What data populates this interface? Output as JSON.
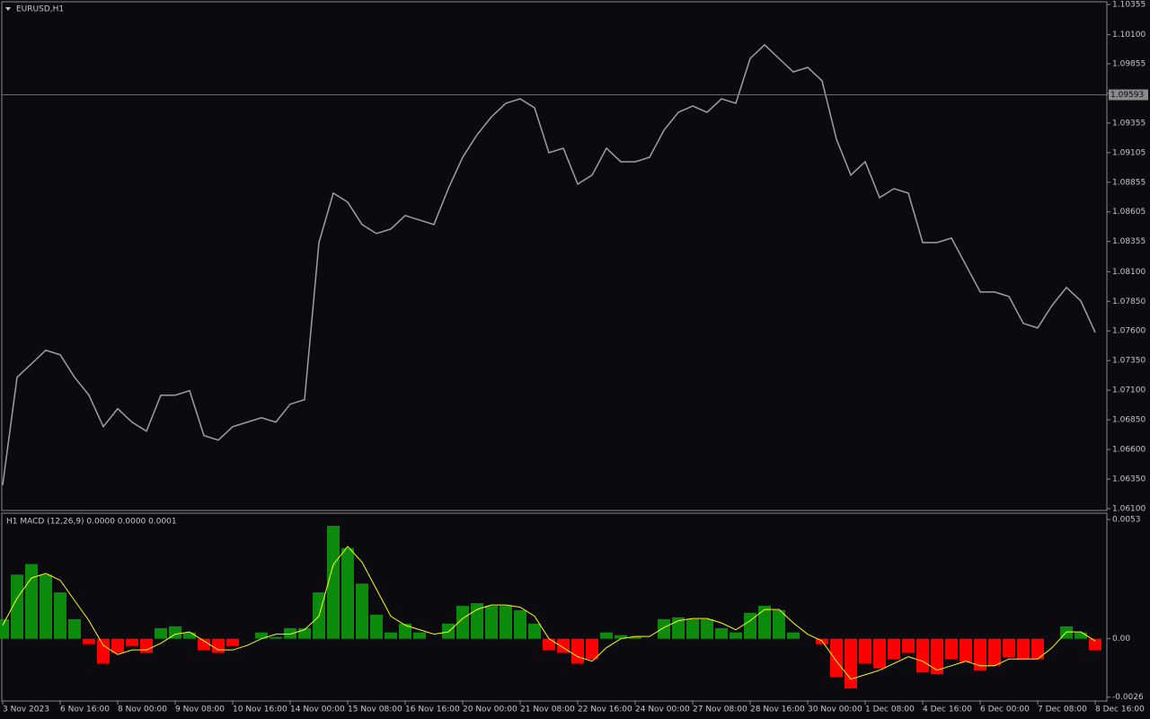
{
  "chart_data": [
    {
      "type": "line",
      "title": "EURUSD,H1",
      "color": "#a0a0a0",
      "values": [
        1.063,
        1.07209,
        1.07323,
        1.07437,
        1.07399,
        1.07209,
        1.07058,
        1.06792,
        1.06944,
        1.0683,
        1.06754,
        1.07058,
        1.07058,
        1.07096,
        1.06717,
        1.06679,
        1.06792,
        1.0683,
        1.06868,
        1.0683,
        1.06982,
        1.0702,
        1.08346,
        1.08763,
        1.08687,
        1.08498,
        1.08422,
        1.0846,
        1.08574,
        1.08536,
        1.08498,
        1.08801,
        1.09066,
        1.09256,
        1.09407,
        1.09521,
        1.09559,
        1.09483,
        1.09104,
        1.09142,
        1.08839,
        1.08915,
        1.09142,
        1.09028,
        1.09028,
        1.09066,
        1.09294,
        1.09445,
        1.09498,
        1.09445,
        1.09559,
        1.09521,
        1.099,
        1.10014,
        1.099,
        1.09786,
        1.09824,
        1.09711,
        1.09218,
        1.08915,
        1.09028,
        1.08725,
        1.08801,
        1.08763,
        1.08346,
        1.08346,
        1.08384,
        1.08157,
        1.07929,
        1.07929,
        1.07891,
        1.07664,
        1.07626,
        1.07816,
        1.07967,
        1.07853,
        1.07588
      ],
      "current_price": 1.09593,
      "ylim": [
        1.061,
        1.10355
      ],
      "yticks": [
        {
          "value": 1.10355,
          "label": "1.10355"
        },
        {
          "value": 1.101,
          "label": "1.10100"
        },
        {
          "value": 1.09855,
          "label": "1.09855"
        },
        {
          "value": 1.09605,
          "label": "1.09605"
        },
        {
          "value": 1.09355,
          "label": "1.09355"
        },
        {
          "value": 1.09105,
          "label": "1.09105"
        },
        {
          "value": 1.08855,
          "label": "1.08855"
        },
        {
          "value": 1.08605,
          "label": "1.08605"
        },
        {
          "value": 1.08355,
          "label": "1.08355"
        },
        {
          "value": 1.081,
          "label": "1.08100"
        },
        {
          "value": 1.0785,
          "label": "1.07850"
        },
        {
          "value": 1.076,
          "label": "1.07600"
        },
        {
          "value": 1.0735,
          "label": "1.07350"
        },
        {
          "value": 1.071,
          "label": "1.07100"
        },
        {
          "value": 1.0685,
          "label": "1.06850"
        },
        {
          "value": 1.066,
          "label": "1.06600"
        },
        {
          "value": 1.0635,
          "label": "1.06350"
        },
        {
          "value": 1.061,
          "label": "1.06100"
        }
      ]
    },
    {
      "type": "macd",
      "title": "H1 MACD (12,26,9) 0.0000 0.0000 0.0001",
      "categories": [
        "3 Nov 2023",
        null,
        null,
        null,
        "6 Nov 16:00",
        null,
        null,
        null,
        "8 Nov 00:00",
        null,
        null,
        null,
        "9 Nov 08:00",
        null,
        null,
        null,
        "10 Nov 16:00",
        null,
        null,
        null,
        "14 Nov 00:00",
        null,
        null,
        null,
        "15 Nov 08:00",
        null,
        null,
        null,
        "16 Nov 16:00",
        null,
        null,
        null,
        "20 Nov 00:00",
        null,
        null,
        null,
        "21 Nov 08:00",
        null,
        null,
        null,
        "22 Nov 16:00",
        null,
        null,
        null,
        "24 Nov 00:00",
        null,
        null,
        null,
        "27 Nov 08:00",
        null,
        null,
        null,
        "28 Nov 16:00",
        null,
        null,
        null,
        "30 Nov 00:00",
        null,
        null,
        null,
        "1 Dec 08:00",
        null,
        null,
        null,
        "4 Dec 16:00",
        null,
        null,
        null,
        "6 Dec 00:00",
        null,
        null,
        null,
        "7 Dec 08:00",
        null,
        null,
        null,
        "8 Dec 16:00"
      ],
      "values": [
        0.00087,
        0.00285,
        0.00332,
        0.00285,
        0.00206,
        0.00087,
        -0.00024,
        -0.00111,
        -0.00063,
        -0.00032,
        -0.00063,
        0.00047,
        0.00055,
        0.00028,
        -0.00051,
        -0.00063,
        -0.00032,
        0,
        0.00028,
        8e-05,
        0.00047,
        0.00047,
        0.00206,
        0.00502,
        0.00403,
        0.00245,
        0.00107,
        0.00028,
        0.00067,
        0.00028,
        0,
        0.00067,
        0.00146,
        0.00158,
        0.00146,
        0.00146,
        0.00127,
        0.00067,
        -0.00051,
        -0.00063,
        -0.00111,
        -0.00091,
        0.00028,
        0.00016,
        8e-05,
        0,
        0.00087,
        0.00095,
        0.00087,
        0.00087,
        0.00047,
        0.00028,
        0.00115,
        0.00146,
        0.00127,
        0.00028,
        0,
        -0.00024,
        -0.0017,
        -0.00221,
        -0.00111,
        -0.00131,
        -0.00091,
        -0.00063,
        -0.0015,
        -0.00158,
        -0.00091,
        -0.00103,
        -0.00142,
        -0.00119,
        -0.00083,
        -0.00091,
        -0.00091,
        0,
        0.00055,
        0.00028,
        -0.00051
      ],
      "up_color": "#0b8a0b",
      "down_color": "#ff0000",
      "signal_values": [
        0.0006,
        0.0018,
        0.0027,
        0.0029,
        0.0026,
        0.0017,
        0.0008,
        -0.0003,
        -0.0007,
        -0.0005,
        -0.0005,
        -0.0002,
        0.0002,
        0.0003,
        -0.0001,
        -0.0005,
        -0.0005,
        -0.0003,
        0.0,
        0.0002,
        0.0002,
        0.0004,
        0.001,
        0.0033,
        0.0041,
        0.0034,
        0.0022,
        0.001,
        0.0006,
        0.0004,
        0.0002,
        0.0003,
        0.0009,
        0.0013,
        0.0015,
        0.0015,
        0.0014,
        0.001,
        0.0,
        -0.0004,
        -0.0008,
        -0.001,
        -0.0004,
        0.0,
        0.0001,
        0.0001,
        0.0005,
        0.0008,
        0.0009,
        0.0009,
        0.0007,
        0.0004,
        0.0008,
        0.0013,
        0.0013,
        0.0007,
        0.0002,
        -0.0001,
        -0.001,
        -0.0018,
        -0.0016,
        -0.0014,
        -0.0011,
        -0.0008,
        -0.001,
        -0.0014,
        -0.0012,
        -0.001,
        -0.0012,
        -0.0012,
        -0.0009,
        -0.0009,
        -0.0009,
        -0.0004,
        0.0003,
        0.0003,
        -0.0001
      ],
      "signal_color": "#ffff00",
      "ylim": [
        -0.00277,
        0.00554
      ],
      "yticks": [
        {
          "value": 0.0053,
          "label": "0.0053"
        },
        {
          "value": 0,
          "label": "0.00"
        },
        {
          "value": -0.0026,
          "label": "-0.0026"
        }
      ]
    }
  ]
}
